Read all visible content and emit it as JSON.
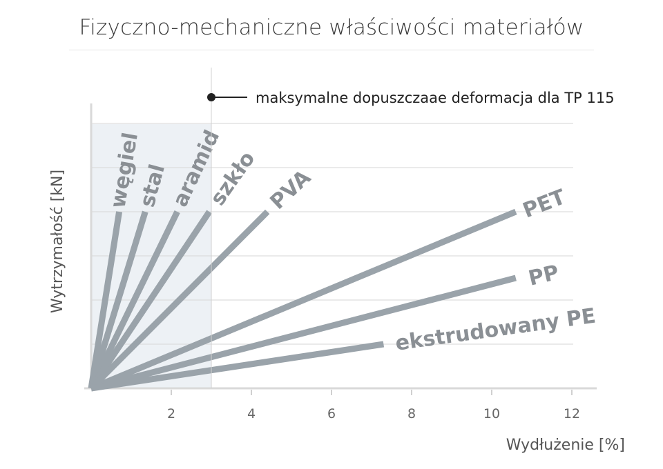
{
  "title": "Fizyczno-mechaniczne właściwości materiałów",
  "chart_data": {
    "type": "line",
    "title": "Fizyczno-mechaniczne właściwości materiałów",
    "xlabel": "Wydłużenie [%]",
    "ylabel": "Wytrzymałość [kN]",
    "xlim": [
      0,
      12.5
    ],
    "ylim": [
      0,
      6.4
    ],
    "xticks": [
      2,
      4,
      6,
      8,
      10,
      12
    ],
    "yticks_shown": false,
    "grid_y": true,
    "shaded_region_x": [
      0,
      3
    ],
    "annotation": {
      "text": "maksymalne dopuszczaae deformacja dla TP 115",
      "x": 3
    },
    "series": [
      {
        "name": "węgiel",
        "x": [
          0,
          0.7
        ],
        "y": [
          0,
          4
        ]
      },
      {
        "name": "stal",
        "x": [
          0,
          1.35
        ],
        "y": [
          0,
          4
        ]
      },
      {
        "name": "aramid",
        "x": [
          0,
          2.15
        ],
        "y": [
          0,
          4
        ]
      },
      {
        "name": "szkło",
        "x": [
          0,
          2.95
        ],
        "y": [
          0,
          4
        ]
      },
      {
        "name": "PVA",
        "x": [
          0,
          4.4
        ],
        "y": [
          0,
          4
        ]
      },
      {
        "name": "PET",
        "x": [
          0,
          10.6
        ],
        "y": [
          0,
          4
        ]
      },
      {
        "name": "PP",
        "x": [
          0,
          10.6
        ],
        "y": [
          0,
          2.5
        ]
      },
      {
        "name": "ekstrudowany PE",
        "x": [
          0,
          7.3
        ],
        "y": [
          0,
          1
        ]
      }
    ],
    "line_color": "#9aa3aa",
    "region_color": "#edf1f5"
  }
}
